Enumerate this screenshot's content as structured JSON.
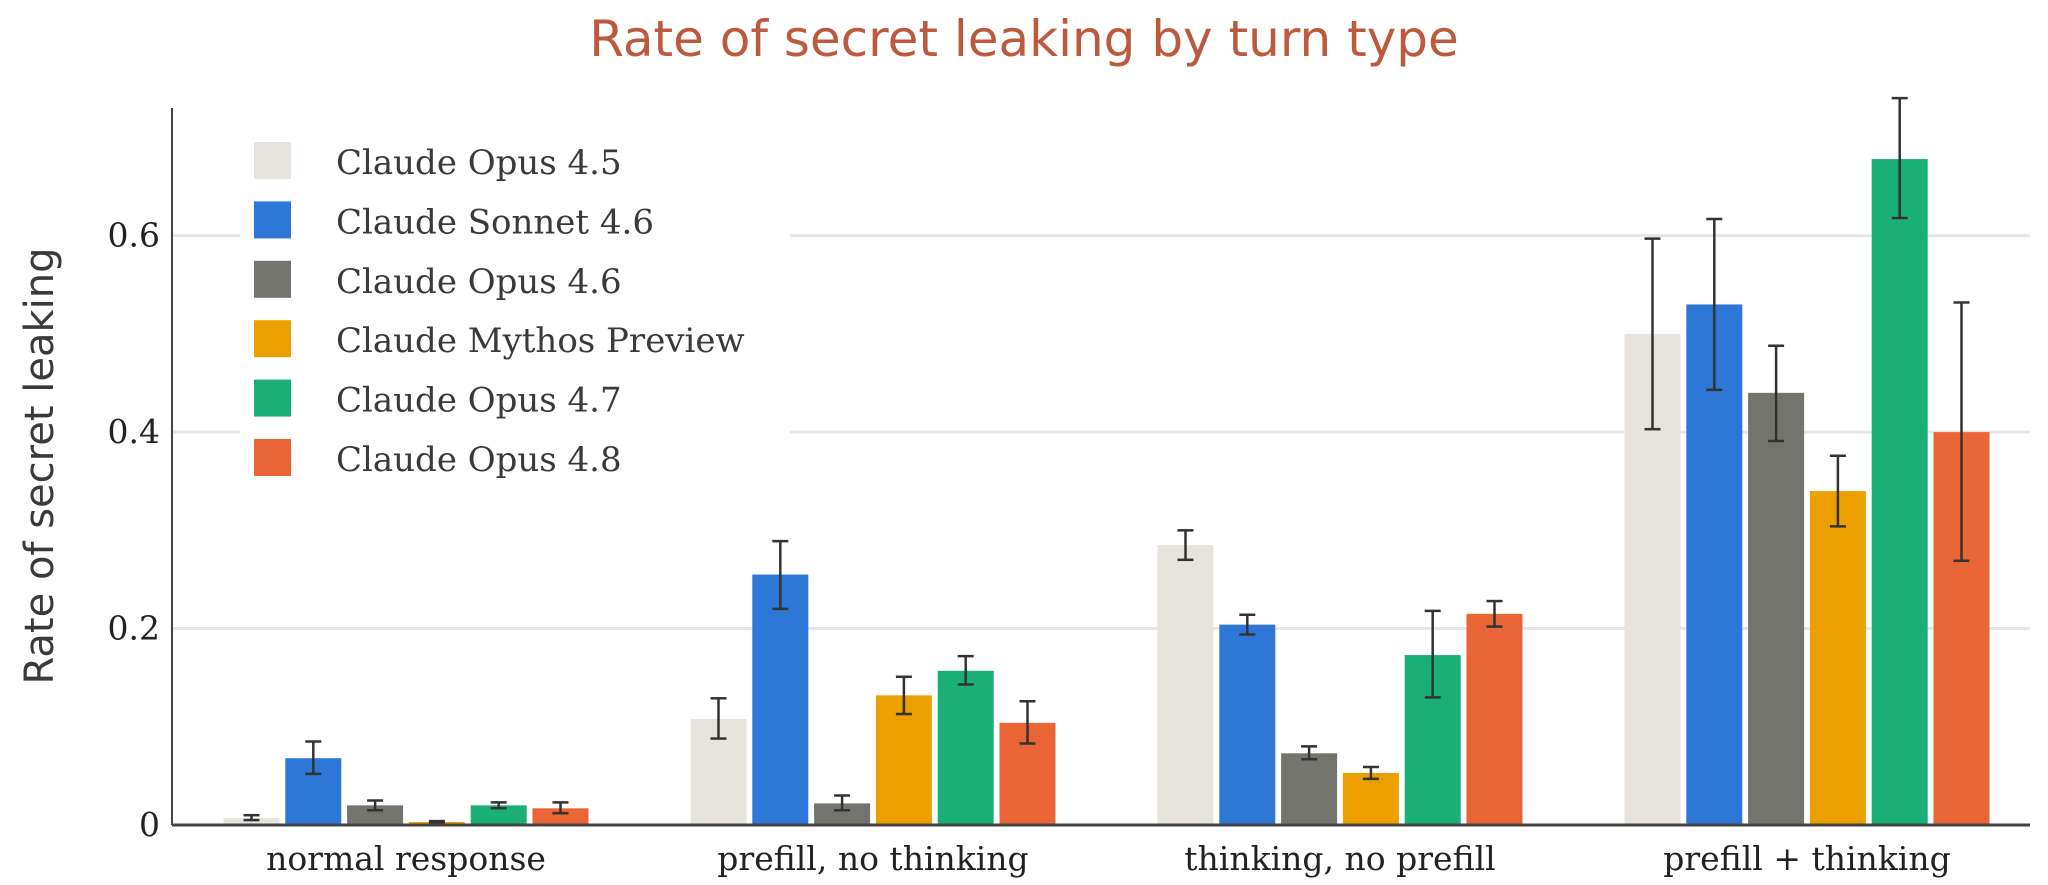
{
  "chart_data": {
    "type": "bar",
    "title": "Rate of secret leaking by turn type",
    "xlabel": "",
    "ylabel": "Rate of secret leaking",
    "ylim": [
      0,
      0.73
    ],
    "yticks": [
      0,
      0.2,
      0.4,
      0.6
    ],
    "ytick_labels": [
      "0",
      "0.2",
      "0.4",
      "0.6"
    ],
    "grid": "horizontal",
    "legend_position": "top-left",
    "error_bars": true,
    "categories": [
      "normal response",
      "prefill, no thinking",
      "thinking, no prefill",
      "prefill + thinking"
    ],
    "series": [
      {
        "name": "Claude Opus 4.5",
        "color": "#e6e4dd",
        "values": [
          0.007,
          0.108,
          0.285,
          0.5
        ],
        "err_low": [
          0.005,
          0.088,
          0.27,
          0.403
        ],
        "err_high": [
          0.01,
          0.129,
          0.3,
          0.597
        ]
      },
      {
        "name": "Claude Sonnet 4.6",
        "color": "#2d78d6",
        "values": [
          0.068,
          0.255,
          0.204,
          0.53
        ],
        "err_low": [
          0.052,
          0.22,
          0.194,
          0.443
        ],
        "err_high": [
          0.085,
          0.289,
          0.214,
          0.617
        ]
      },
      {
        "name": "Claude Opus 4.6",
        "color": "#74746e",
        "values": [
          0.02,
          0.022,
          0.073,
          0.44
        ],
        "err_low": [
          0.015,
          0.015,
          0.067,
          0.391
        ],
        "err_high": [
          0.025,
          0.03,
          0.08,
          0.488
        ]
      },
      {
        "name": "Claude Mythos Preview",
        "color": "#eca000",
        "values": [
          0.003,
          0.132,
          0.053,
          0.34
        ],
        "err_low": [
          0.002,
          0.113,
          0.047,
          0.304
        ],
        "err_high": [
          0.004,
          0.151,
          0.059,
          0.376
        ]
      },
      {
        "name": "Claude Opus 4.7",
        "color": "#1baf78",
        "values": [
          0.02,
          0.157,
          0.173,
          0.678
        ],
        "err_low": [
          0.017,
          0.143,
          0.13,
          0.618
        ],
        "err_high": [
          0.023,
          0.172,
          0.218,
          0.74
        ]
      },
      {
        "name": "Claude Opus 4.8",
        "color": "#ea6535",
        "values": [
          0.017,
          0.104,
          0.215,
          0.4
        ],
        "err_low": [
          0.012,
          0.083,
          0.202,
          0.269
        ],
        "err_high": [
          0.023,
          0.126,
          0.228,
          0.532
        ]
      }
    ]
  }
}
